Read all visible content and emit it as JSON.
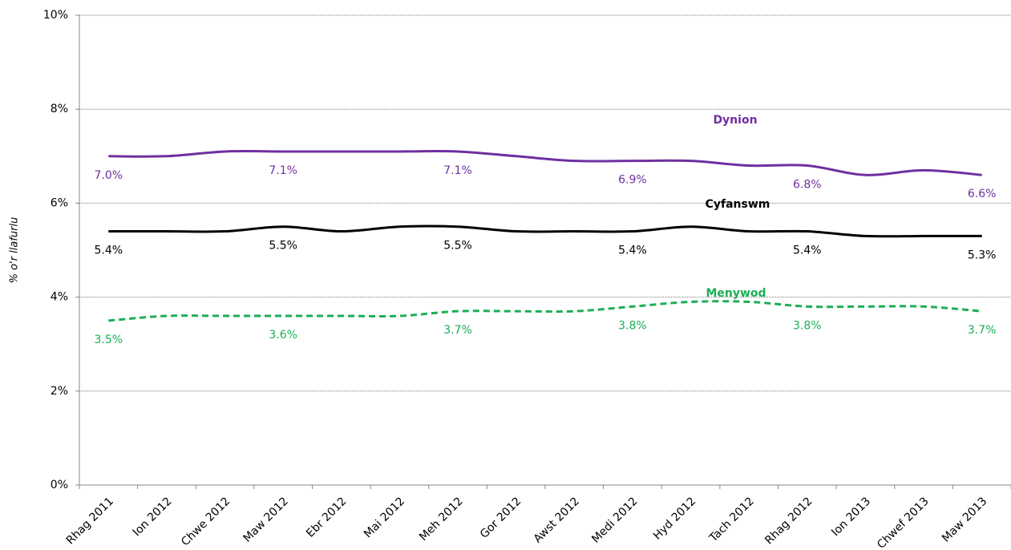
{
  "chart_data": {
    "type": "line",
    "y_label": "% o'r llafurlu",
    "categories": [
      "Rhag 2011",
      "Ion 2012",
      "Chwe 2012",
      "Maw 2012",
      "Ebr 2012",
      "Mai 2012",
      "Meh 2012",
      "Gor 2012",
      "Awst 2012",
      "Medi 2012",
      "Hyd 2012",
      "Tach 2012",
      "Rhag 2012",
      "Ion 2013",
      "Chwef 2013",
      "Maw 2013"
    ],
    "series": [
      {
        "name": "Dynion",
        "color": "#7030a0",
        "dashed": false,
        "values": [
          7.0,
          7.0,
          7.1,
          7.1,
          7.1,
          7.1,
          7.1,
          7.0,
          6.9,
          6.9,
          6.9,
          6.8,
          6.8,
          6.6,
          6.7,
          6.6
        ],
        "value_labels": [
          "7.0%",
          null,
          null,
          "7.1%",
          null,
          null,
          "7.1%",
          null,
          null,
          "6.9%",
          null,
          null,
          "6.8%",
          null,
          null,
          "6.6%"
        ]
      },
      {
        "name": "Cyfanswm",
        "color": "#000000",
        "dashed": false,
        "values": [
          5.4,
          5.4,
          5.4,
          5.5,
          5.4,
          5.5,
          5.5,
          5.4,
          5.4,
          5.4,
          5.5,
          5.4,
          5.4,
          5.3,
          5.3,
          5.3
        ],
        "value_labels": [
          "5.4%",
          null,
          null,
          "5.5%",
          null,
          null,
          "5.5%",
          null,
          null,
          "5.4%",
          null,
          null,
          "5.4%",
          null,
          null,
          "5.3%"
        ]
      },
      {
        "name": "Menywod",
        "color": "#1aaf54",
        "dashed": true,
        "values": [
          3.5,
          3.6,
          3.6,
          3.6,
          3.6,
          3.6,
          3.7,
          3.7,
          3.7,
          3.8,
          3.9,
          3.9,
          3.8,
          3.8,
          3.8,
          3.7
        ],
        "value_labels": [
          "3.5%",
          null,
          null,
          "3.6%",
          null,
          null,
          "3.7%",
          null,
          null,
          "3.8%",
          null,
          null,
          "3.8%",
          null,
          null,
          "3.7%"
        ]
      }
    ],
    "ylim": [
      0,
      10
    ],
    "yticks": [
      {
        "value": 0,
        "label": "0%"
      },
      {
        "value": 2,
        "label": "2%"
      },
      {
        "value": 4,
        "label": "4%"
      },
      {
        "value": 6,
        "label": "6%"
      },
      {
        "value": 8,
        "label": "8%"
      },
      {
        "value": 10,
        "label": "10%"
      }
    ],
    "grid": true
  }
}
